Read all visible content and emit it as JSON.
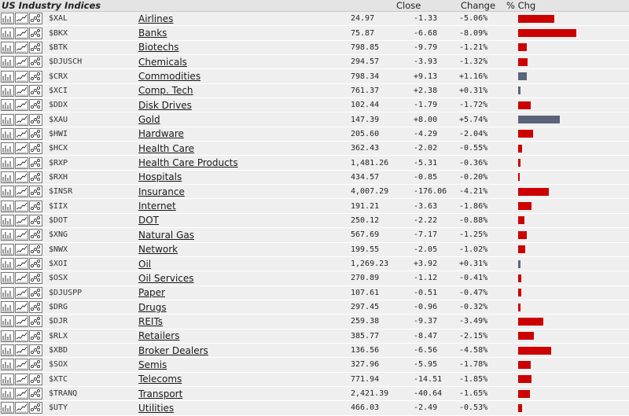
{
  "header": {
    "title": "US Industry Indices",
    "close": "Close",
    "change": "Change",
    "pct_chg": "% Chg"
  },
  "colors": {
    "negative_bar": "#cc0000",
    "positive_bar": "#5b6478",
    "row_bg": "#efefef",
    "header_bg": "#e4e4e4"
  },
  "icons": [
    "bar-chart-icon",
    "line-chart-icon",
    "point-figure-icon"
  ],
  "bar_scale_max_pct": 8.09,
  "rows": [
    {
      "symbol": "$XAL",
      "name": "Airlines",
      "close": "24.97",
      "change": "-1.33",
      "pct": "-5.06%",
      "pct_value": -5.06
    },
    {
      "symbol": "$BKX",
      "name": "Banks",
      "close": "75.87",
      "change": "-6.68",
      "pct": "-8.09%",
      "pct_value": -8.09
    },
    {
      "symbol": "$BTK",
      "name": "Biotechs",
      "close": "798.85",
      "change": "-9.79",
      "pct": "-1.21%",
      "pct_value": -1.21
    },
    {
      "symbol": "$DJUSCH",
      "name": "Chemicals",
      "close": "294.57",
      "change": "-3.93",
      "pct": "-1.32%",
      "pct_value": -1.32
    },
    {
      "symbol": "$CRX",
      "name": "Commodities",
      "close": "798.34",
      "change": "+9.13",
      "pct": "+1.16%",
      "pct_value": 1.16
    },
    {
      "symbol": "$XCI",
      "name": "Comp. Tech",
      "close": "761.37",
      "change": "+2.38",
      "pct": "+0.31%",
      "pct_value": 0.31
    },
    {
      "symbol": "$DDX",
      "name": "Disk Drives",
      "close": "102.44",
      "change": "-1.79",
      "pct": "-1.72%",
      "pct_value": -1.72
    },
    {
      "symbol": "$XAU",
      "name": "Gold",
      "close": "147.39",
      "change": "+8.00",
      "pct": "+5.74%",
      "pct_value": 5.74
    },
    {
      "symbol": "$HWI",
      "name": "Hardware",
      "close": "205.60",
      "change": "-4.29",
      "pct": "-2.04%",
      "pct_value": -2.04
    },
    {
      "symbol": "$HCX",
      "name": "Health Care",
      "close": "362.43",
      "change": "-2.02",
      "pct": "-0.55%",
      "pct_value": -0.55
    },
    {
      "symbol": "$RXP",
      "name": "Health Care Products",
      "close": "1,481.26",
      "change": "-5.31",
      "pct": "-0.36%",
      "pct_value": -0.36
    },
    {
      "symbol": "$RXH",
      "name": "Hospitals",
      "close": "434.57",
      "change": "-0.85",
      "pct": "-0.20%",
      "pct_value": -0.2
    },
    {
      "symbol": "$INSR",
      "name": "Insurance",
      "close": "4,007.29",
      "change": "-176.06",
      "pct": "-4.21%",
      "pct_value": -4.21
    },
    {
      "symbol": "$IIX",
      "name": "Internet",
      "close": "191.21",
      "change": "-3.63",
      "pct": "-1.86%",
      "pct_value": -1.86
    },
    {
      "symbol": "$DOT",
      "name": "DOT",
      "close": "250.12",
      "change": "-2.22",
      "pct": "-0.88%",
      "pct_value": -0.88
    },
    {
      "symbol": "$XNG",
      "name": "Natural Gas",
      "close": "567.69",
      "change": "-7.17",
      "pct": "-1.25%",
      "pct_value": -1.25
    },
    {
      "symbol": "$NWX",
      "name": "Network",
      "close": "199.55",
      "change": "-2.05",
      "pct": "-1.02%",
      "pct_value": -1.02
    },
    {
      "symbol": "$XOI",
      "name": "Oil",
      "close": "1,269.23",
      "change": "+3.92",
      "pct": "+0.31%",
      "pct_value": 0.31
    },
    {
      "symbol": "$OSX",
      "name": "Oil Services",
      "close": "270.89",
      "change": "-1.12",
      "pct": "-0.41%",
      "pct_value": -0.41
    },
    {
      "symbol": "$DJUSPP",
      "name": "Paper",
      "close": "107.61",
      "change": "-0.51",
      "pct": "-0.47%",
      "pct_value": -0.47
    },
    {
      "symbol": "$DRG",
      "name": "Drugs",
      "close": "297.45",
      "change": "-0.96",
      "pct": "-0.32%",
      "pct_value": -0.32
    },
    {
      "symbol": "$DJR",
      "name": "REITs",
      "close": "259.38",
      "change": "-9.37",
      "pct": "-3.49%",
      "pct_value": -3.49
    },
    {
      "symbol": "$RLX",
      "name": "Retailers",
      "close": "385.77",
      "change": "-8.47",
      "pct": "-2.15%",
      "pct_value": -2.15
    },
    {
      "symbol": "$XBD",
      "name": "Broker Dealers",
      "close": "136.56",
      "change": "-6.56",
      "pct": "-4.58%",
      "pct_value": -4.58
    },
    {
      "symbol": "$SOX",
      "name": "Semis",
      "close": "327.96",
      "change": "-5.95",
      "pct": "-1.78%",
      "pct_value": -1.78
    },
    {
      "symbol": "$XTC",
      "name": "Telecoms",
      "close": "771.94",
      "change": "-14.51",
      "pct": "-1.85%",
      "pct_value": -1.85
    },
    {
      "symbol": "$TRANQ",
      "name": "Transport",
      "close": "2,421.39",
      "change": "-40.64",
      "pct": "-1.65%",
      "pct_value": -1.65
    },
    {
      "symbol": "$UTY",
      "name": "Utilities",
      "close": "466.03",
      "change": "-2.49",
      "pct": "-0.53%",
      "pct_value": -0.53
    }
  ]
}
